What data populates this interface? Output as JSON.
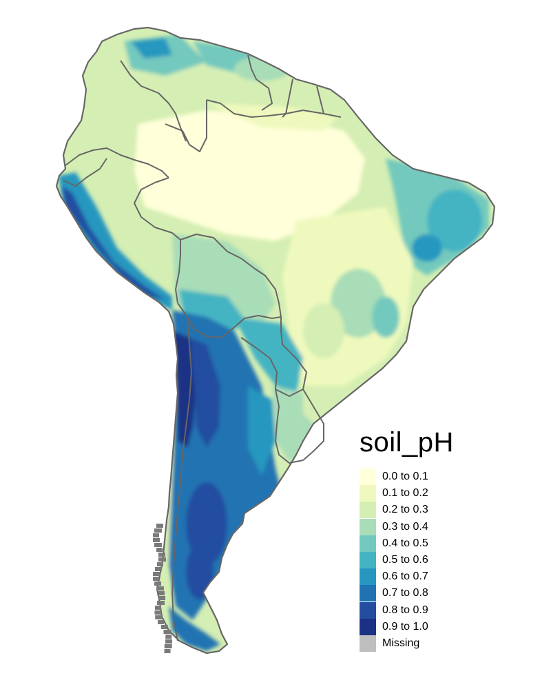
{
  "legend": {
    "title": "soil_pH",
    "items": [
      {
        "label": "0.0 to 0.1",
        "color": "#ffffd9"
      },
      {
        "label": "0.1 to 0.2",
        "color": "#eff9bd"
      },
      {
        "label": "0.2 to 0.3",
        "color": "#d5eeb3"
      },
      {
        "label": "0.3 to 0.4",
        "color": "#a9ddb7"
      },
      {
        "label": "0.4 to 0.5",
        "color": "#73c9bd"
      },
      {
        "label": "0.5 to 0.6",
        "color": "#45b4c2"
      },
      {
        "label": "0.6 to 0.7",
        "color": "#2897bf"
      },
      {
        "label": "0.7 to 0.8",
        "color": "#2073b2"
      },
      {
        "label": "0.8 to 0.9",
        "color": "#234ea0"
      },
      {
        "label": "0.9 to 1.0",
        "color": "#1c3185"
      },
      {
        "label": "Missing",
        "color": "#bebebe"
      }
    ]
  },
  "map": {
    "border_color": "#666666"
  }
}
